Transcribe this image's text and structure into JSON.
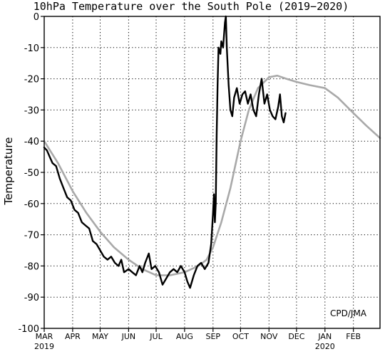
{
  "chart_data": {
    "type": "line",
    "title": "10hPa Temperature over the South Pole (2019−2020)",
    "ylabel": "Temperature",
    "xlabel": "",
    "ylim": [
      -100,
      0
    ],
    "yticks": [
      0,
      -10,
      -20,
      -30,
      -40,
      -50,
      -60,
      -70,
      -80,
      -90,
      -100
    ],
    "xlim": [
      "2019-03-01",
      "2020-03-01"
    ],
    "month_ticks": [
      {
        "label": "MAR",
        "date": "2019-03-01",
        "year": "2019"
      },
      {
        "label": "APR",
        "date": "2019-04-01"
      },
      {
        "label": "MAY",
        "date": "2019-05-01"
      },
      {
        "label": "JUN",
        "date": "2019-06-01"
      },
      {
        "label": "JUL",
        "date": "2019-07-01"
      },
      {
        "label": "AUG",
        "date": "2019-08-01"
      },
      {
        "label": "SEP",
        "date": "2019-09-01"
      },
      {
        "label": "OCT",
        "date": "2019-10-01"
      },
      {
        "label": "NOV",
        "date": "2019-11-01"
      },
      {
        "label": "DEC",
        "date": "2019-12-01"
      },
      {
        "label": "JAN",
        "date": "2020-01-01",
        "year": "2020"
      },
      {
        "label": "FEB",
        "date": "2020-02-01"
      }
    ],
    "grid": true,
    "annotation": "CPD/JMA",
    "series": [
      {
        "color": "#000000",
        "points": [
          [
            "2019-03-01",
            -42
          ],
          [
            "2019-03-04",
            -43
          ],
          [
            "2019-03-07",
            -45
          ],
          [
            "2019-03-10",
            -47
          ],
          [
            "2019-03-14",
            -48
          ],
          [
            "2019-03-18",
            -52
          ],
          [
            "2019-03-22",
            -55
          ],
          [
            "2019-03-26",
            -58
          ],
          [
            "2019-03-30",
            -59
          ],
          [
            "2019-04-03",
            -62
          ],
          [
            "2019-04-07",
            -63
          ],
          [
            "2019-04-11",
            -66
          ],
          [
            "2019-04-15",
            -67
          ],
          [
            "2019-04-19",
            -68
          ],
          [
            "2019-04-23",
            -72
          ],
          [
            "2019-04-27",
            -73
          ],
          [
            "2019-05-01",
            -75
          ],
          [
            "2019-05-05",
            -77
          ],
          [
            "2019-05-09",
            -78
          ],
          [
            "2019-05-13",
            -77
          ],
          [
            "2019-05-17",
            -79
          ],
          [
            "2019-05-21",
            -80
          ],
          [
            "2019-05-24",
            -78
          ],
          [
            "2019-05-27",
            -82
          ],
          [
            "2019-06-01",
            -81
          ],
          [
            "2019-06-05",
            -82
          ],
          [
            "2019-06-09",
            -83
          ],
          [
            "2019-06-13",
            -80
          ],
          [
            "2019-06-16",
            -82
          ],
          [
            "2019-06-19",
            -79
          ],
          [
            "2019-06-23",
            -76
          ],
          [
            "2019-06-26",
            -81
          ],
          [
            "2019-06-30",
            -80
          ],
          [
            "2019-07-04",
            -82
          ],
          [
            "2019-07-08",
            -86
          ],
          [
            "2019-07-12",
            -84
          ],
          [
            "2019-07-16",
            -82
          ],
          [
            "2019-07-20",
            -81
          ],
          [
            "2019-07-24",
            -82
          ],
          [
            "2019-07-28",
            -80
          ],
          [
            "2019-08-01",
            -82
          ],
          [
            "2019-08-04",
            -85
          ],
          [
            "2019-08-07",
            -87
          ],
          [
            "2019-08-11",
            -83
          ],
          [
            "2019-08-15",
            -80
          ],
          [
            "2019-08-19",
            -79
          ],
          [
            "2019-08-23",
            -81
          ],
          [
            "2019-08-27",
            -79
          ],
          [
            "2019-08-30",
            -73
          ],
          [
            "2019-09-01",
            -63
          ],
          [
            "2019-09-02",
            -57
          ],
          [
            "2019-09-03",
            -66
          ],
          [
            "2019-09-04",
            -60
          ],
          [
            "2019-09-05",
            -38
          ],
          [
            "2019-09-06",
            -22
          ],
          [
            "2019-09-07",
            -10
          ],
          [
            "2019-09-09",
            -12
          ],
          [
            "2019-09-10",
            -8
          ],
          [
            "2019-09-12",
            -10
          ],
          [
            "2019-09-14",
            -2
          ],
          [
            "2019-09-15",
            0
          ],
          [
            "2019-09-16",
            -10
          ],
          [
            "2019-09-18",
            -22
          ],
          [
            "2019-09-20",
            -30
          ],
          [
            "2019-09-22",
            -32
          ],
          [
            "2019-09-24",
            -26
          ],
          [
            "2019-09-27",
            -23
          ],
          [
            "2019-09-30",
            -28
          ],
          [
            "2019-10-03",
            -25
          ],
          [
            "2019-10-06",
            -24
          ],
          [
            "2019-10-09",
            -28
          ],
          [
            "2019-10-12",
            -25
          ],
          [
            "2019-10-15",
            -30
          ],
          [
            "2019-10-18",
            -32
          ],
          [
            "2019-10-21",
            -25
          ],
          [
            "2019-10-24",
            -20
          ],
          [
            "2019-10-27",
            -28
          ],
          [
            "2019-10-30",
            -25
          ],
          [
            "2019-11-02",
            -30
          ],
          [
            "2019-11-05",
            -32
          ],
          [
            "2019-11-08",
            -33
          ],
          [
            "2019-11-11",
            -29
          ],
          [
            "2019-11-13",
            -25
          ],
          [
            "2019-11-15",
            -32
          ],
          [
            "2019-11-17",
            -34
          ],
          [
            "2019-11-19",
            -31
          ]
        ]
      },
      {
        "color": "#a9a9a9",
        "points": [
          [
            "2019-03-01",
            -40
          ],
          [
            "2019-03-16",
            -47
          ],
          [
            "2019-04-01",
            -56
          ],
          [
            "2019-04-16",
            -63
          ],
          [
            "2019-05-01",
            -69
          ],
          [
            "2019-05-16",
            -74
          ],
          [
            "2019-06-01",
            -78
          ],
          [
            "2019-06-16",
            -81
          ],
          [
            "2019-07-01",
            -83
          ],
          [
            "2019-07-16",
            -83
          ],
          [
            "2019-08-01",
            -82
          ],
          [
            "2019-08-16",
            -80
          ],
          [
            "2019-08-25",
            -78
          ],
          [
            "2019-09-01",
            -74
          ],
          [
            "2019-09-10",
            -66
          ],
          [
            "2019-09-20",
            -55
          ],
          [
            "2019-10-01",
            -40
          ],
          [
            "2019-10-10",
            -30
          ],
          [
            "2019-10-20",
            -23
          ],
          [
            "2019-11-01",
            -19.5
          ],
          [
            "2019-11-10",
            -19
          ],
          [
            "2019-11-20",
            -20
          ],
          [
            "2019-12-01",
            -21
          ],
          [
            "2019-12-15",
            -22
          ],
          [
            "2020-01-01",
            -23
          ],
          [
            "2020-01-15",
            -26
          ],
          [
            "2020-02-01",
            -31
          ],
          [
            "2020-02-15",
            -35
          ],
          [
            "2020-03-01",
            -39
          ]
        ]
      }
    ]
  }
}
